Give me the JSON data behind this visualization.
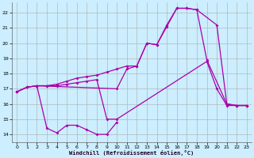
{
  "xlabel": "Windchill (Refroidissement éolien,°C)",
  "background_color": "#cceeff",
  "line_color": "#aa00aa",
  "grid_color": "#aaaaaa",
  "xlim": [
    -0.5,
    23.5
  ],
  "ylim": [
    13.5,
    22.7
  ],
  "xticks": [
    0,
    1,
    2,
    3,
    4,
    5,
    6,
    7,
    8,
    9,
    10,
    11,
    12,
    13,
    14,
    15,
    16,
    17,
    18,
    19,
    20,
    21,
    22,
    23
  ],
  "yticks": [
    14,
    15,
    16,
    17,
    18,
    19,
    20,
    21,
    22
  ],
  "lines": [
    {
      "x": [
        0,
        1,
        2,
        3,
        4,
        5,
        6,
        7,
        8,
        9,
        10,
        11,
        12,
        13,
        14,
        15,
        16,
        17,
        18,
        20,
        21,
        22,
        23
      ],
      "y": [
        16.8,
        17.1,
        17.2,
        17.2,
        17.3,
        17.5,
        17.7,
        17.8,
        17.9,
        18.1,
        18.3,
        18.5,
        18.5,
        20.0,
        19.9,
        21.2,
        22.3,
        22.3,
        22.2,
        21.2,
        16.0,
        15.9,
        15.9
      ]
    },
    {
      "x": [
        2,
        10,
        11,
        12,
        13,
        14,
        15,
        16,
        17,
        18,
        19,
        21,
        22,
        23
      ],
      "y": [
        17.2,
        17.0,
        18.3,
        18.5,
        20.0,
        19.9,
        21.1,
        22.3,
        22.3,
        22.2,
        18.9,
        16.0,
        15.9,
        15.9
      ]
    },
    {
      "x": [
        0,
        1,
        2,
        3,
        4,
        5,
        6,
        7,
        8,
        9,
        10
      ],
      "y": [
        16.8,
        17.1,
        17.2,
        14.4,
        14.1,
        14.6,
        14.6,
        14.3,
        14.0,
        14.0,
        14.8
      ]
    },
    {
      "x": [
        0,
        1,
        2,
        3,
        4,
        5,
        6,
        7,
        8,
        9,
        10,
        19,
        20,
        21,
        22,
        23
      ],
      "y": [
        16.8,
        17.1,
        17.2,
        17.2,
        17.2,
        17.3,
        17.4,
        17.5,
        17.6,
        15.0,
        15.0,
        18.8,
        17.0,
        15.9,
        15.9,
        15.9
      ]
    }
  ]
}
